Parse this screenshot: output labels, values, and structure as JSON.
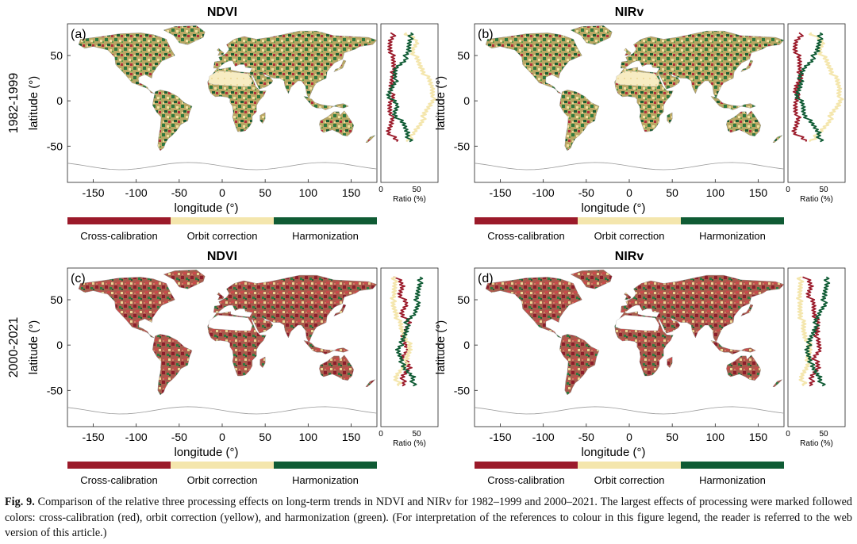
{
  "figure": {
    "rows": [
      {
        "label": "1982-1999"
      },
      {
        "label": "2000-2021"
      }
    ],
    "panels": [
      {
        "id": "(a)",
        "title": "NDVI",
        "row": 0,
        "col": 0
      },
      {
        "id": "(b)",
        "title": "NIRv",
        "row": 0,
        "col": 1
      },
      {
        "id": "(c)",
        "title": "NDVI",
        "row": 1,
        "col": 0
      },
      {
        "id": "(d)",
        "title": "NIRv",
        "row": 1,
        "col": 1
      }
    ],
    "map_axes": {
      "xlabel": "longitude (°)",
      "ylabel": "latitude (°)",
      "xticks": [
        -150,
        -100,
        -50,
        0,
        50,
        100,
        150
      ],
      "yticks": [
        50,
        0,
        -50
      ],
      "xlim": [
        -180,
        180
      ],
      "ylim": [
        -90,
        85
      ]
    },
    "ratio_axes": {
      "xlabel": "Ratio (%)",
      "xticks": [
        0,
        50
      ],
      "xlim": [
        0,
        80
      ]
    },
    "legend": [
      {
        "label": "Cross-calibration",
        "color": "#9b1a2a"
      },
      {
        "label": "Orbit correction",
        "color": "#f4e6ad"
      },
      {
        "label": "Harmonization",
        "color": "#0f5b34"
      }
    ]
  },
  "chart_data": [
    {
      "type": "line",
      "panel": "(a)",
      "title": "NDVI (1982-1999) ratio by latitude",
      "xlabel": "Ratio (%)",
      "ylabel": "latitude (°)",
      "xlim": [
        0,
        80
      ],
      "ylim": [
        -90,
        85
      ],
      "y": [
        75,
        65,
        55,
        45,
        35,
        25,
        15,
        5,
        -5,
        -15,
        -25,
        -35,
        -45
      ],
      "series": [
        {
          "name": "Cross-calibration",
          "values": [
            18,
            12,
            15,
            16,
            20,
            14,
            15,
            15,
            12,
            16,
            14,
            12,
            22
          ]
        },
        {
          "name": "Orbit correction",
          "values": [
            35,
            50,
            45,
            50,
            58,
            65,
            72,
            75,
            68,
            62,
            55,
            48,
            36
          ]
        },
        {
          "name": "Harmonization",
          "values": [
            45,
            38,
            40,
            32,
            20,
            22,
            15,
            12,
            22,
            20,
            30,
            38,
            40
          ]
        }
      ]
    },
    {
      "type": "line",
      "panel": "(b)",
      "title": "NIRv (1982-1999) ratio by latitude",
      "xlabel": "Ratio (%)",
      "ylabel": "latitude (°)",
      "xlim": [
        0,
        80
      ],
      "ylim": [
        -90,
        85
      ],
      "y": [
        75,
        65,
        55,
        45,
        35,
        25,
        15,
        5,
        -5,
        -15,
        -25,
        -35,
        -45
      ],
      "series": [
        {
          "name": "Cross-calibration",
          "values": [
            20,
            10,
            12,
            15,
            18,
            16,
            12,
            12,
            10,
            14,
            12,
            10,
            25
          ]
        },
        {
          "name": "Orbit correction",
          "values": [
            32,
            48,
            45,
            52,
            60,
            66,
            72,
            74,
            70,
            62,
            55,
            46,
            30
          ]
        },
        {
          "name": "Harmonization",
          "values": [
            48,
            42,
            42,
            32,
            22,
            18,
            16,
            14,
            20,
            24,
            32,
            44,
            45
          ]
        }
      ]
    },
    {
      "type": "line",
      "panel": "(c)",
      "title": "NDVI (2000-2021) ratio by latitude",
      "xlabel": "Ratio (%)",
      "ylabel": "latitude (°)",
      "xlim": [
        0,
        80
      ],
      "ylim": [
        -90,
        85
      ],
      "y": [
        75,
        65,
        55,
        45,
        35,
        25,
        15,
        5,
        -5,
        -15,
        -25,
        -35,
        -45
      ],
      "series": [
        {
          "name": "Cross-calibration",
          "values": [
            22,
            30,
            28,
            35,
            30,
            38,
            35,
            30,
            38,
            32,
            40,
            32,
            30
          ]
        },
        {
          "name": "Orbit correction",
          "values": [
            20,
            18,
            20,
            15,
            22,
            25,
            30,
            38,
            40,
            38,
            30,
            22,
            25
          ]
        },
        {
          "name": "Harmonization",
          "values": [
            58,
            52,
            52,
            50,
            48,
            37,
            35,
            32,
            22,
            30,
            30,
            46,
            45
          ]
        }
      ]
    },
    {
      "type": "line",
      "panel": "(d)",
      "title": "NIRv (2000-2021) ratio by latitude",
      "xlabel": "Ratio (%)",
      "ylabel": "latitude (°)",
      "xlim": [
        0,
        80
      ],
      "ylim": [
        -90,
        85
      ],
      "y": [
        75,
        65,
        55,
        45,
        35,
        25,
        15,
        5,
        -5,
        -15,
        -25,
        -35,
        -45
      ],
      "series": [
        {
          "name": "Cross-calibration",
          "values": [
            25,
            32,
            30,
            35,
            38,
            40,
            42,
            40,
            45,
            38,
            42,
            35,
            30
          ]
        },
        {
          "name": "Orbit correction",
          "values": [
            18,
            16,
            18,
            15,
            18,
            20,
            22,
            28,
            30,
            30,
            25,
            20,
            22
          ]
        },
        {
          "name": "Harmonization",
          "values": [
            57,
            52,
            52,
            50,
            44,
            40,
            36,
            32,
            25,
            32,
            33,
            45,
            48
          ]
        }
      ]
    }
  ],
  "caption": {
    "label": "Fig. 9.",
    "text": "Comparison of the relative three processing effects on long-term trends in NDVI and NIRv for 1982–1999 and 2000–2021. The largest effects of processing were marked followed colors: cross-calibration (red), orbit correction (yellow), and harmonization (green). (For interpretation of the references to colour in this figure legend, the reader is referred to the web version of this article.)"
  }
}
